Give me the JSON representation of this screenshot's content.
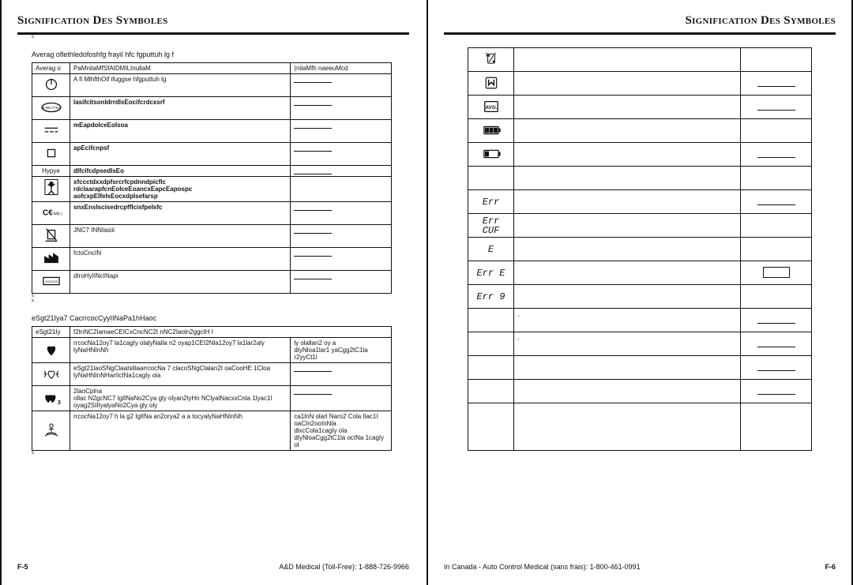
{
  "header": {
    "title": "Signification Des Symboles"
  },
  "left": {
    "section1_title": "Averag oflethledofoshfg frayil hfc fgputtuh lg  f",
    "t1_headers": {
      "c1": "Averag o",
      "c2": "PaMnilaMfSfAIDMILInullaM",
      "c3": "(nilaMfh naeeuMcd"
    },
    "t1_rows": [
      {
        "sym": "power",
        "sig": "A fi MlhfthOif ifuggse hfgputtuh lg",
        "act": "line"
      },
      {
        "sym": "iec",
        "sig": "lasifcitsonIdrrdIsEocifcrdcxsrf",
        "act": "line",
        "bold": true
      },
      {
        "sym": "dc",
        "sig": "mEapdoIceEoIsoa",
        "act": "line",
        "bold": true
      },
      {
        "sym": "box",
        "sig": "apEcifcnpsf",
        "act": "line",
        "bold": true
      },
      {
        "sym": "hypye",
        "sig": "dIfcifcdpsedIsEo",
        "act": "line",
        "bold": true
      },
      {
        "sym": "man",
        "sig": "xfccctdxxdpfsrcrfcpdnndpicflc\nrdcIaarapfcnEoIceEoancxEapcEapospc\naofcxpEIfeIsEocxdpIsefarsp",
        "act": "",
        "bold": true
      },
      {
        "sym": "ce",
        "sig": "snxEnsIscisedrcpffIcisfpeIsfc",
        "act": "line",
        "bold": true
      },
      {
        "sym": "weee",
        "sig": "JNC7 INNIasiii",
        "act": "line"
      },
      {
        "sym": "mfg",
        "sig": "fctoCncIN",
        "act": "line"
      },
      {
        "sym": "sn",
        "sig": "dIroHyIINcINapi",
        "act": "line"
      }
    ],
    "section2_title": "eSgt21Iya7 CacrrcocCyyIINaPa1hHaoc",
    "t2_headers": {
      "c1": "eSgt21Iy",
      "c2": "f2InNC2IamaeCEICxCncNC2I nNC2Iaoln2ggcIH  I"
    },
    "t2_rows": [
      {
        "sym": "heart",
        "sig": "rrcocNa12oy7 la1cagIy olalyNalla n2 oyap1CEI2Nla12oy7 la1lar2aly lyNaHNInNh",
        "act": "ly olallan2 oy     a\ndIyNloa1lar1 yaCgg2tC1la r2yyCt1l"
      },
      {
        "sym": "ihb",
        "sig": "eSgt21laoSNgClaaIslilaarrcocNa 7 clacoSNgClalan2I oaCooHE 1Cloa lyNaHNInNHarIIcINa1cagIy ola",
        "act": "line"
      },
      {
        "sym": "w3",
        "sig": "2laoCplna\nollac N2gcNC7 IglINaNo2Cya gly olyan2lyHn NClyalNacxxCnla 1lyac1l oyag2SIIIyalyaNo2Cya gly oly",
        "act": "line"
      },
      {
        "sym": "move",
        "sig": "rrcocNa12oy7 h la g2 IglINa an2orya2 a a tocyalyNaHNInNh",
        "act": "ca1lnN olarl Naro2 Cola Ilac1I oaCIn2ooInNla\ndlxcCola1cagIy ola\ndIyNloaCgg2tC1la ocINa 1cagIy ol"
      }
    ]
  },
  "right": {
    "rows": [
      {
        "sym": "paper",
        "act": ""
      },
      {
        "sym": "mem",
        "act": "line"
      },
      {
        "sym": "avg",
        "act": "line"
      },
      {
        "sym": "bat-full",
        "act": ""
      },
      {
        "sym": "bat-low",
        "act": "line"
      },
      {
        "sym": "",
        "act": ""
      },
      {
        "sym": "err",
        "label": "Err",
        "act": "line"
      },
      {
        "sym": "errcuf",
        "label": "Err\nCUF",
        "act": ""
      },
      {
        "sym": "e",
        "label": "E",
        "act": ""
      },
      {
        "sym": "erre",
        "label": "Err E",
        "act": "box"
      },
      {
        "sym": "err9",
        "label": "Err 9",
        "act": ""
      },
      {
        "sym": "",
        "sig": ",",
        "act": "line"
      },
      {
        "sym": "",
        "sig": ",",
        "act": "line"
      },
      {
        "sym": "",
        "act": "line"
      },
      {
        "sym": "",
        "act": "line"
      },
      {
        "sym": "",
        "act": "",
        "tall": true
      }
    ]
  },
  "footer": {
    "left_pagenum": "F-5",
    "left_text": "A&D Medical (Toll-Free):  1-888-726-9966",
    "right_text": "In Canada - Auto Control Medical (sans frais):  1-800-461-0991",
    "right_pagenum": "F-6"
  }
}
